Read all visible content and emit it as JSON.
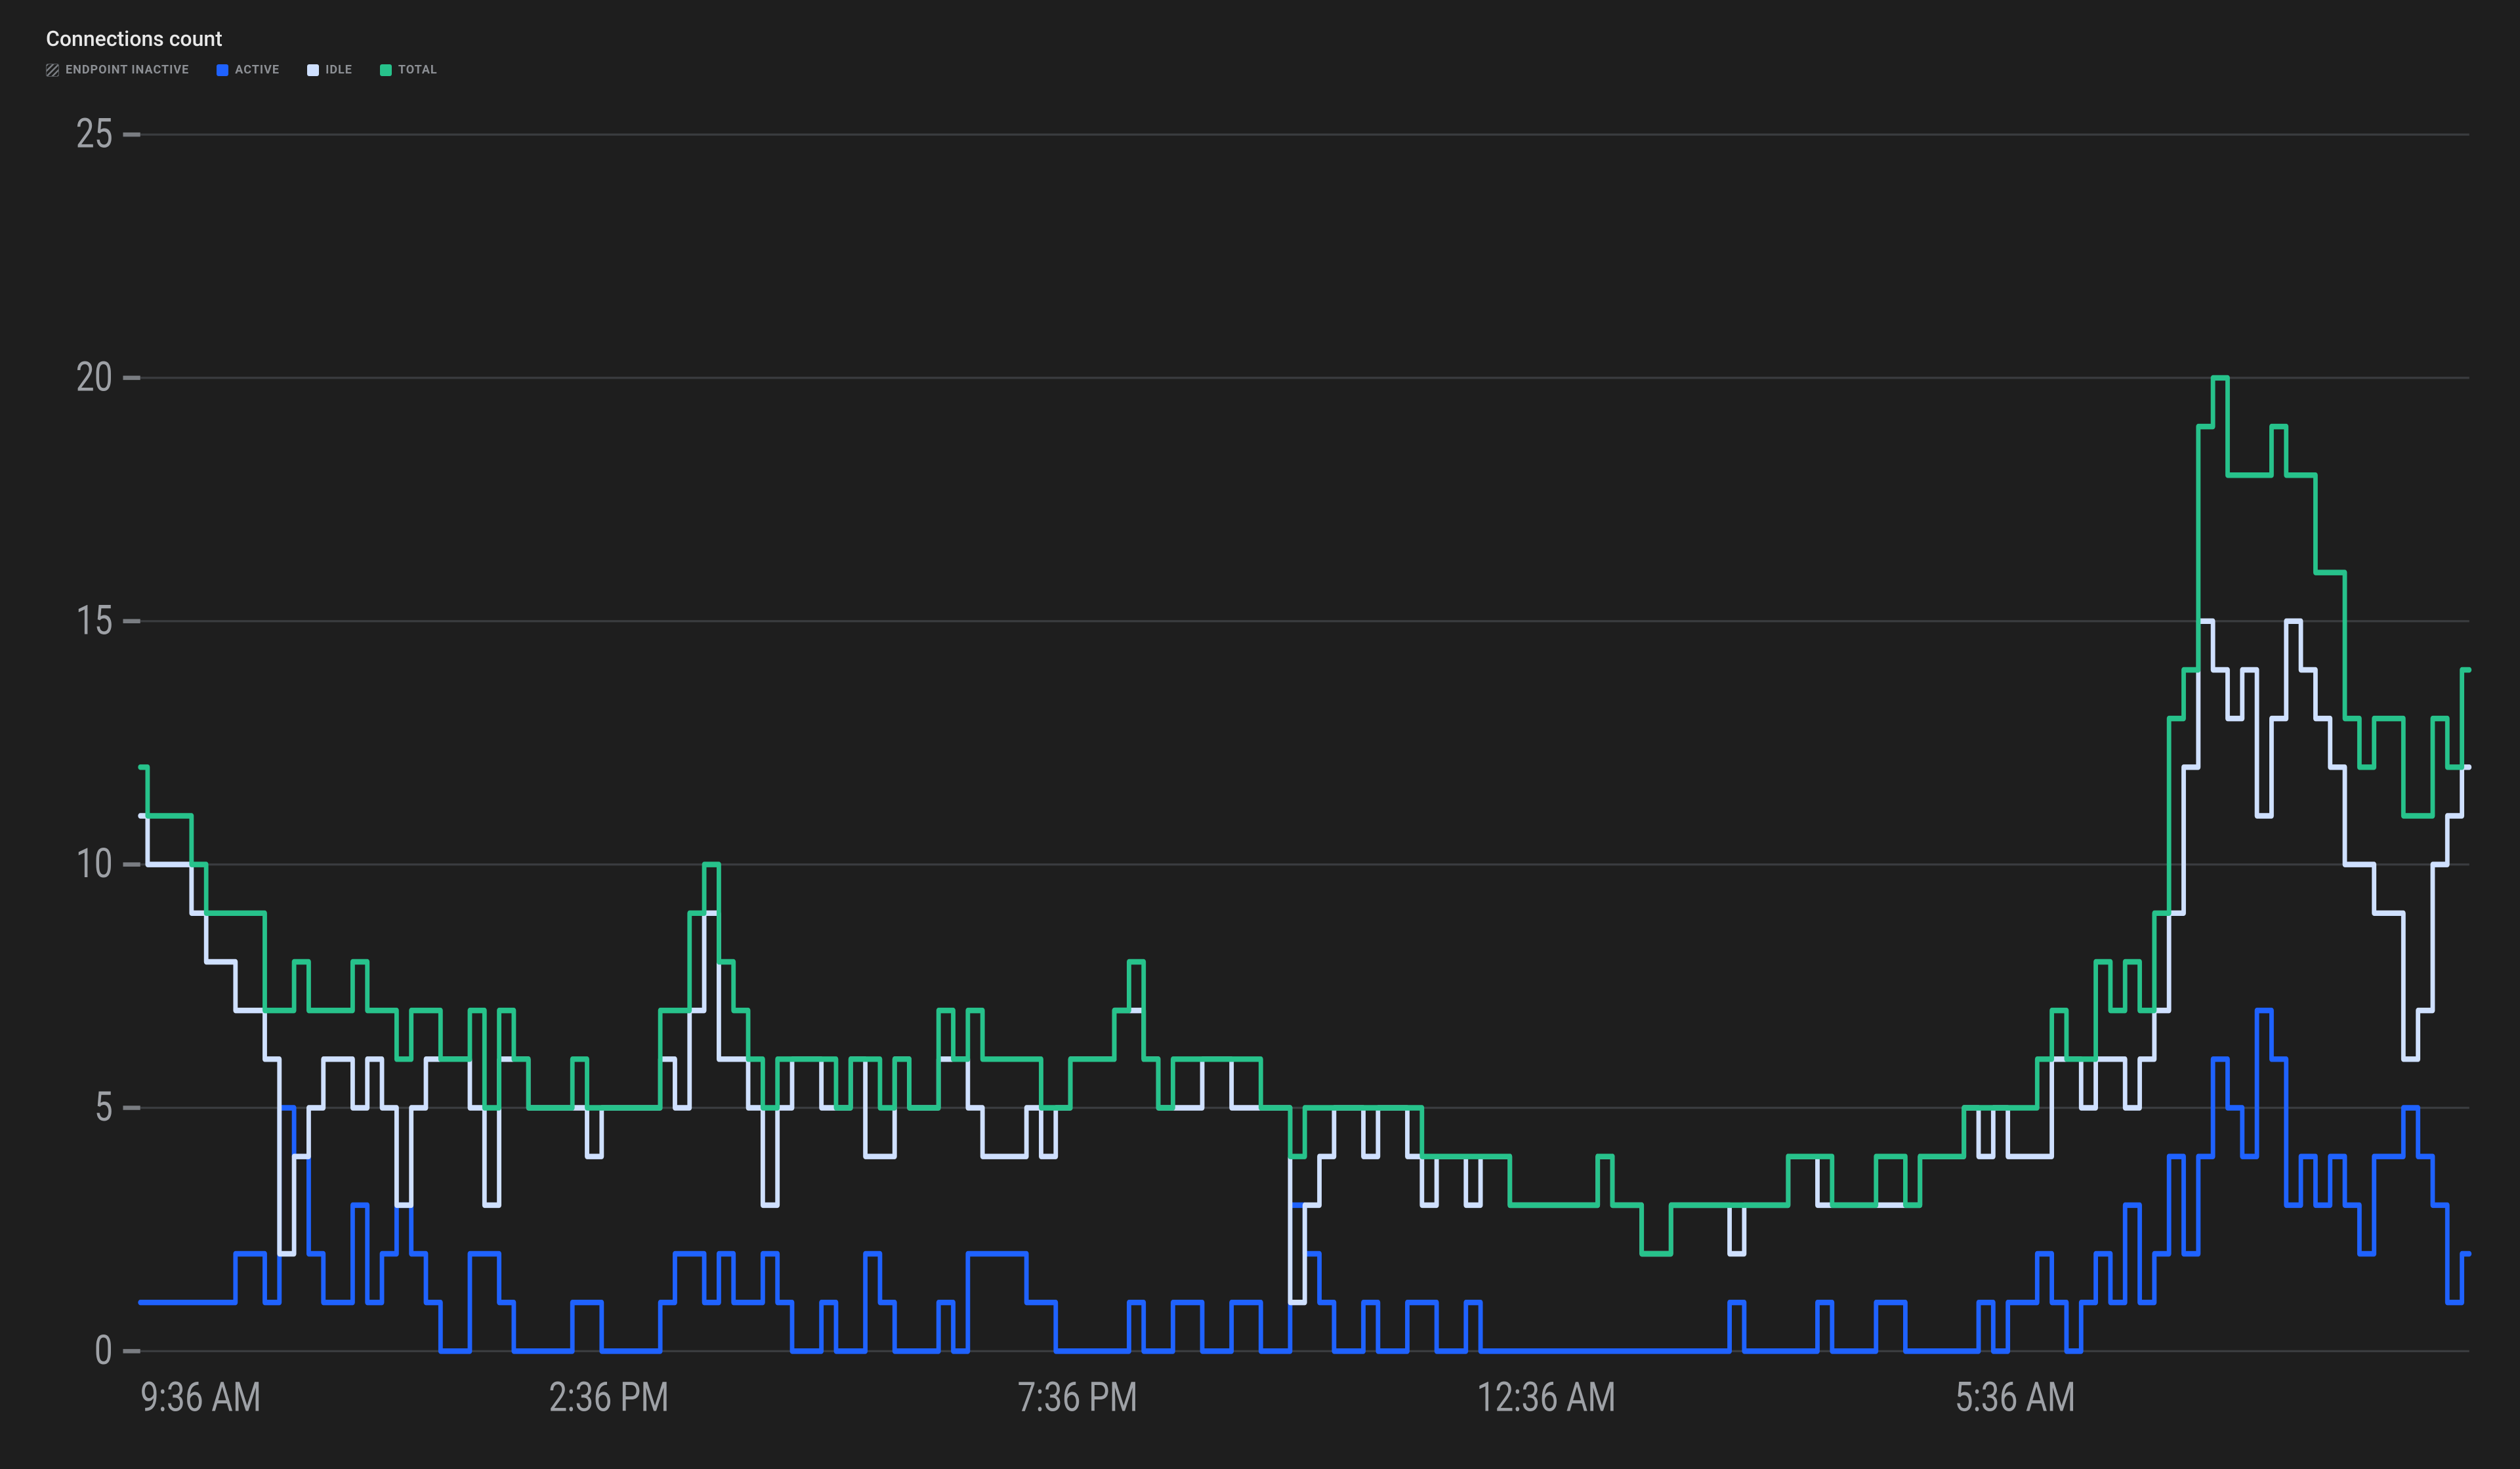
{
  "title": "Connections count",
  "background_color": "#1e1e1e",
  "grid_color": "#3a3c3f",
  "axis_text_color": "#9ea1a6",
  "axis_fontsize": 19,
  "title_fontsize": 32,
  "legend": [
    {
      "key": "endpoint_inactive",
      "label": "ENDPOINT INACTIVE",
      "type": "hatched",
      "color": "#7a7d82"
    },
    {
      "key": "active",
      "label": "ACTIVE",
      "type": "solid",
      "color": "#1f62ff"
    },
    {
      "key": "idle",
      "label": "IDLE",
      "type": "solid",
      "color": "#cfe0ff"
    },
    {
      "key": "total",
      "label": "TOTAL",
      "type": "solid",
      "color": "#27c28b"
    }
  ],
  "chart": {
    "type": "line",
    "line_width": 2.6,
    "x_count": 160,
    "ylim": [
      0,
      25
    ],
    "ytick_step": 5,
    "yticks": [
      0,
      5,
      10,
      15,
      20,
      25
    ],
    "x_major_ticks": [
      {
        "i": 0,
        "label": "9:36 AM"
      },
      {
        "i": 32,
        "label": "2:36 PM"
      },
      {
        "i": 64,
        "label": "7:36 PM"
      },
      {
        "i": 96,
        "label": "12:36 AM"
      },
      {
        "i": 128,
        "label": "5:36 AM"
      }
    ],
    "series": {
      "active": {
        "color": "#1f62ff",
        "values": [
          1,
          1,
          1,
          1,
          1,
          1,
          1,
          2,
          2,
          1,
          5,
          4,
          2,
          1,
          1,
          3,
          1,
          2,
          3,
          2,
          1,
          0,
          0,
          2,
          2,
          1,
          0,
          0,
          0,
          0,
          1,
          1,
          0,
          0,
          0,
          0,
          1,
          2,
          2,
          1,
          2,
          1,
          1,
          2,
          1,
          0,
          0,
          1,
          0,
          0,
          2,
          1,
          0,
          0,
          0,
          1,
          0,
          2,
          2,
          2,
          2,
          1,
          1,
          0,
          0,
          0,
          0,
          0,
          1,
          0,
          0,
          1,
          1,
          0,
          0,
          1,
          1,
          0,
          0,
          3,
          2,
          1,
          0,
          0,
          1,
          0,
          0,
          1,
          1,
          0,
          0,
          1,
          0,
          0,
          0,
          0,
          0,
          0,
          0,
          0,
          0,
          0,
          0,
          0,
          0,
          0,
          0,
          0,
          0,
          1,
          0,
          0,
          0,
          0,
          0,
          1,
          0,
          0,
          0,
          1,
          1,
          0,
          0,
          0,
          0,
          0,
          1,
          0,
          1,
          1,
          2,
          1,
          0,
          1,
          2,
          1,
          3,
          1,
          2,
          4,
          2,
          4,
          6,
          5,
          4,
          7,
          6,
          3,
          4,
          3,
          4,
          3,
          2,
          4,
          4,
          5,
          4,
          3,
          1,
          2
        ]
      },
      "idle": {
        "color": "#cfe0ff",
        "values": [
          11,
          10,
          10,
          10,
          9,
          8,
          8,
          7,
          7,
          6,
          2,
          4,
          5,
          6,
          6,
          5,
          6,
          5,
          3,
          5,
          6,
          6,
          6,
          5,
          3,
          6,
          6,
          5,
          5,
          5,
          5,
          4,
          5,
          5,
          5,
          5,
          6,
          5,
          7,
          9,
          6,
          6,
          5,
          3,
          5,
          6,
          6,
          5,
          5,
          6,
          4,
          4,
          6,
          5,
          5,
          6,
          6,
          5,
          4,
          4,
          4,
          5,
          4,
          5,
          6,
          6,
          6,
          7,
          7,
          6,
          5,
          5,
          5,
          6,
          6,
          5,
          5,
          5,
          5,
          1,
          3,
          4,
          5,
          5,
          4,
          5,
          5,
          4,
          3,
          4,
          4,
          3,
          4,
          4,
          3,
          3,
          3,
          3,
          3,
          3,
          4,
          3,
          3,
          2,
          2,
          3,
          3,
          3,
          3,
          2,
          3,
          3,
          3,
          4,
          4,
          3,
          3,
          3,
          3,
          3,
          3,
          3,
          4,
          4,
          4,
          5,
          4,
          5,
          4,
          4,
          4,
          6,
          6,
          5,
          6,
          6,
          5,
          6,
          7,
          9,
          12,
          15,
          14,
          13,
          14,
          11,
          13,
          15,
          14,
          13,
          12,
          10,
          10,
          9,
          9,
          6,
          7,
          10,
          11,
          12
        ]
      },
      "total": {
        "color": "#27c28b",
        "values": [
          12,
          11,
          11,
          11,
          10,
          9,
          9,
          9,
          9,
          7,
          7,
          8,
          7,
          7,
          7,
          8,
          7,
          7,
          6,
          7,
          7,
          6,
          6,
          7,
          5,
          7,
          6,
          5,
          5,
          5,
          6,
          5,
          5,
          5,
          5,
          5,
          7,
          7,
          9,
          10,
          8,
          7,
          6,
          5,
          6,
          6,
          6,
          6,
          5,
          6,
          6,
          5,
          6,
          5,
          5,
          7,
          6,
          7,
          6,
          6,
          6,
          6,
          5,
          5,
          6,
          6,
          6,
          7,
          8,
          6,
          5,
          6,
          6,
          6,
          6,
          6,
          6,
          5,
          5,
          4,
          5,
          5,
          5,
          5,
          5,
          5,
          5,
          5,
          4,
          4,
          4,
          4,
          4,
          4,
          3,
          3,
          3,
          3,
          3,
          3,
          4,
          3,
          3,
          2,
          2,
          3,
          3,
          3,
          3,
          3,
          3,
          3,
          3,
          4,
          4,
          4,
          3,
          3,
          3,
          4,
          4,
          3,
          4,
          4,
          4,
          5,
          5,
          5,
          5,
          5,
          6,
          7,
          6,
          6,
          8,
          7,
          8,
          7,
          9,
          13,
          14,
          19,
          20,
          18,
          18,
          18,
          19,
          18,
          18,
          16,
          16,
          13,
          12,
          13,
          13,
          11,
          11,
          13,
          12,
          14
        ]
      }
    }
  }
}
